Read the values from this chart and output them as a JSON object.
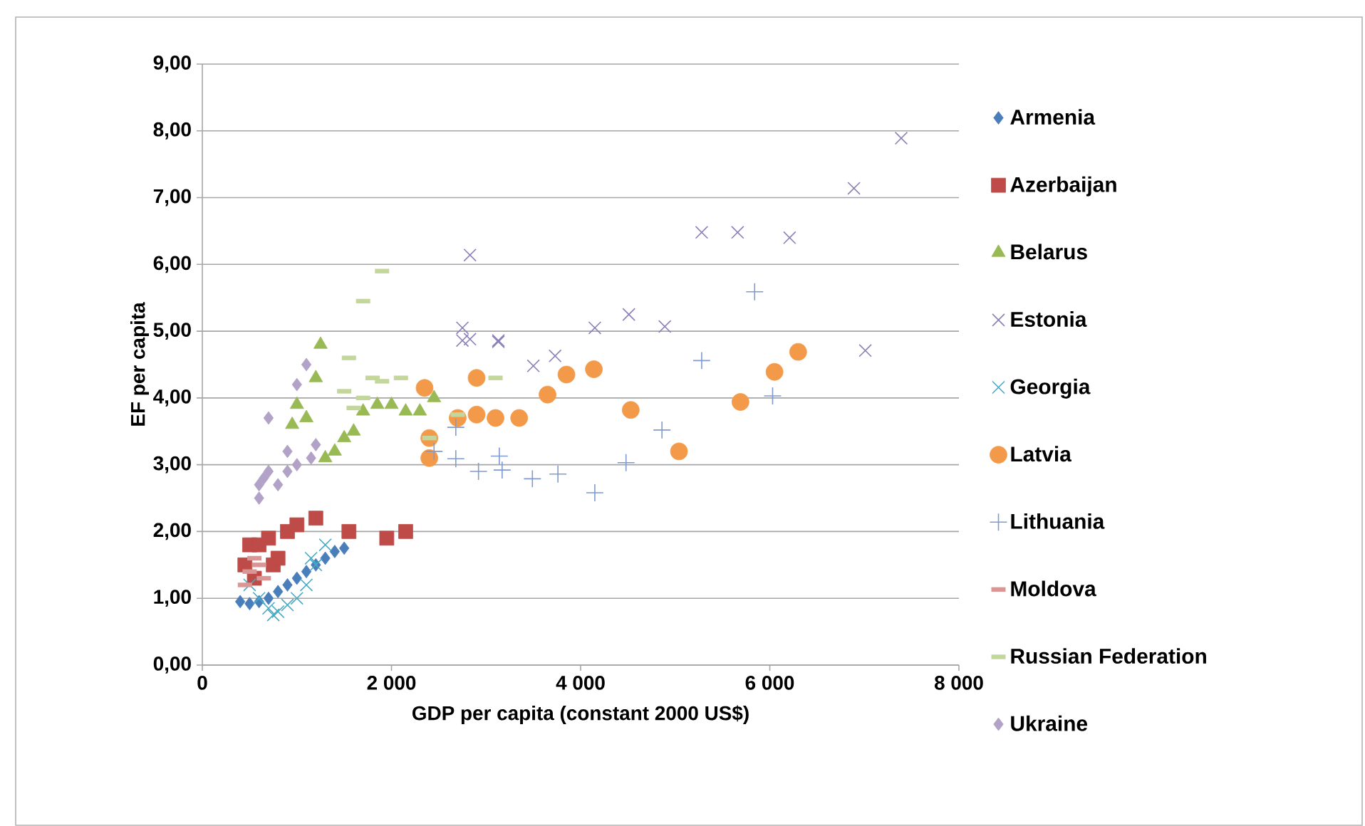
{
  "chart_data": {
    "type": "scatter",
    "xlabel": "GDP per capita (constant 2000 US$)",
    "ylabel": "EF per capita",
    "xlim": [
      0,
      8000
    ],
    "ylim": [
      0,
      9
    ],
    "xticks": [
      0,
      {
        "value": 2000,
        "label": "2 000"
      },
      {
        "value": 4000,
        "label": "4 000"
      },
      {
        "value": 6000,
        "label": "6 000"
      },
      {
        "value": 8000,
        "label": "8 000"
      }
    ],
    "yticks": [
      {
        "value": 0,
        "label": "0,00"
      },
      {
        "value": 1,
        "label": "1,00"
      },
      {
        "value": 2,
        "label": "2,00"
      },
      {
        "value": 3,
        "label": "3,00"
      },
      {
        "value": 4,
        "label": "4,00"
      },
      {
        "value": 5,
        "label": "5,00"
      },
      {
        "value": 6,
        "label": "6,00"
      },
      {
        "value": 7,
        "label": "7,00"
      },
      {
        "value": 8,
        "label": "8,00"
      },
      {
        "value": 9,
        "label": "9,00"
      }
    ],
    "grid": "y",
    "legend": "right",
    "series": [
      {
        "name": "Armenia",
        "color": "#4a7ebb",
        "marker": "diamond",
        "x": [
          400,
          500,
          600,
          700,
          800,
          900,
          1000,
          1100,
          1200,
          1300,
          1400,
          1500
        ],
        "values": [
          0.95,
          0.92,
          0.95,
          1.0,
          1.1,
          1.2,
          1.3,
          1.4,
          1.5,
          1.6,
          1.7,
          1.75
        ]
      },
      {
        "name": "Azerbaijan",
        "color": "#be4b48",
        "marker": "square",
        "x": [
          450,
          500,
          550,
          600,
          700,
          750,
          800,
          900,
          1000,
          1200,
          1550,
          1950,
          2150
        ],
        "values": [
          1.5,
          1.8,
          1.3,
          1.8,
          1.9,
          1.5,
          1.6,
          2.0,
          2.1,
          2.2,
          2.0,
          1.9,
          2.0
        ]
      },
      {
        "name": "Belarus",
        "color": "#98b954",
        "marker": "triangle",
        "x": [
          950,
          1000,
          1100,
          1200,
          1250,
          1300,
          1400,
          1500,
          1600,
          1700,
          1850,
          2000,
          2150,
          2300,
          2450
        ],
        "values": [
          3.6,
          3.9,
          3.7,
          4.3,
          4.8,
          3.1,
          3.2,
          3.4,
          3.5,
          3.8,
          3.9,
          3.9,
          3.8,
          3.8,
          4.0
        ]
      },
      {
        "name": "Estonia",
        "color": "#8c7fb8",
        "marker": "cross",
        "x": [
          2750,
          2750,
          2830,
          2830,
          3130,
          3130,
          3500,
          3730,
          4150,
          4510,
          4890,
          5280,
          5660,
          6210,
          6890,
          7010,
          7390
        ],
        "values": [
          5.05,
          4.86,
          6.14,
          4.88,
          4.86,
          4.84,
          4.48,
          4.63,
          5.05,
          5.25,
          5.07,
          6.48,
          6.48,
          6.4,
          7.14,
          4.71,
          7.89
        ]
      },
      {
        "name": "Georgia",
        "color": "#46aac5",
        "marker": "cross",
        "x": [
          500,
          600,
          700,
          750,
          800,
          900,
          1000,
          1100,
          1150,
          1200,
          1300
        ],
        "values": [
          1.2,
          1.0,
          0.85,
          0.75,
          0.8,
          0.9,
          1.0,
          1.2,
          1.6,
          1.5,
          1.8
        ]
      },
      {
        "name": "Latvia",
        "color": "#f39a4a",
        "marker": "circle",
        "x": [
          2350,
          2400,
          2400,
          2700,
          2900,
          2900,
          3100,
          3350,
          3650,
          3850,
          4140,
          4530,
          5040,
          5690,
          6050,
          6300
        ],
        "values": [
          4.15,
          3.4,
          3.1,
          3.7,
          3.75,
          4.3,
          3.7,
          3.7,
          4.05,
          4.35,
          4.43,
          3.82,
          3.2,
          3.94,
          4.39,
          4.69
        ]
      },
      {
        "name": "Lithuania",
        "color": "#7f9bd0",
        "marker": "plus",
        "x": [
          2450,
          2680,
          2680,
          2920,
          3140,
          3170,
          3490,
          3760,
          4150,
          4480,
          4860,
          5280,
          5840,
          6030
        ],
        "values": [
          3.2,
          3.56,
          3.09,
          2.9,
          3.13,
          2.92,
          2.79,
          2.86,
          2.58,
          3.03,
          3.52,
          4.56,
          5.59,
          4.03
        ]
      },
      {
        "name": "Moldova",
        "color": "#d99694",
        "x": [
          450,
          500,
          550,
          600,
          650
        ],
        "values": [
          1.2,
          1.4,
          1.6,
          1.5,
          1.3
        ]
      },
      {
        "name": "Russian Federation",
        "color": "#c3d69b",
        "x": [
          1500,
          1550,
          1600,
          1700,
          1700,
          1800,
          1900,
          1900,
          2100,
          2400,
          2700,
          3100
        ],
        "values": [
          4.1,
          4.6,
          3.85,
          4.0,
          5.45,
          4.3,
          5.9,
          4.25,
          4.3,
          3.4,
          3.75,
          4.3
        ]
      },
      {
        "name": "Ukraine",
        "color": "#b3a2c7",
        "marker": "diamond",
        "x": [
          600,
          600,
          650,
          700,
          700,
          800,
          900,
          900,
          1000,
          1000,
          1100,
          1150,
          1200
        ],
        "values": [
          2.5,
          2.7,
          2.8,
          2.9,
          3.7,
          2.7,
          2.9,
          3.2,
          3.0,
          4.2,
          4.5,
          3.1,
          3.3
        ]
      }
    ]
  }
}
